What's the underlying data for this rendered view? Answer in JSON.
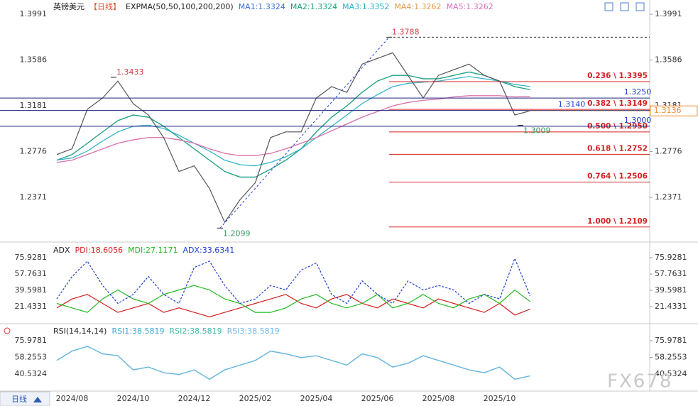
{
  "chart_data": [
    {
      "type": "line",
      "title": "英镑美元",
      "period": "【日线】",
      "indicator": "EXPMA(50,50,100,200,200)",
      "categories": [
        null,
        "2024/08",
        null,
        null,
        null,
        "2024/10",
        null,
        null,
        null,
        "2024/12",
        null,
        null,
        null,
        "2025/02",
        null,
        null,
        null,
        "2025/04",
        null,
        null,
        null,
        "2025/06",
        null,
        null,
        null,
        "2025/08",
        null,
        null,
        null,
        "2025/10",
        null,
        null
      ],
      "values": [
        1.275,
        1.28,
        1.315,
        1.325,
        1.34,
        1.32,
        1.31,
        1.29,
        1.26,
        1.265,
        1.245,
        1.215,
        1.235,
        1.25,
        1.29,
        1.295,
        1.295,
        1.325,
        1.335,
        1.33,
        1.355,
        1.36,
        1.365,
        1.345,
        1.325,
        1.345,
        1.35,
        1.355,
        1.345,
        1.34,
        1.31,
        1.3136
      ],
      "color": "#555555",
      "series": [
        {
          "name": "MA1:1.3324",
          "color": "#3b6fd4",
          "values": [
            1.27,
            1.275,
            1.285,
            1.295,
            1.305,
            1.31,
            1.308,
            1.3,
            1.29,
            1.28,
            1.27,
            1.26,
            1.255,
            1.255,
            1.262,
            1.27,
            1.28,
            1.295,
            1.308,
            1.318,
            1.33,
            1.34,
            1.345,
            1.345,
            1.342,
            1.342,
            1.345,
            1.348,
            1.345,
            1.34,
            1.335,
            1.3324
          ]
        },
        {
          "name": "MA2:1.3324",
          "color": "#1aa87a",
          "values": [
            1.27,
            1.275,
            1.285,
            1.295,
            1.305,
            1.31,
            1.308,
            1.3,
            1.29,
            1.28,
            1.27,
            1.26,
            1.255,
            1.255,
            1.262,
            1.27,
            1.28,
            1.295,
            1.308,
            1.318,
            1.33,
            1.34,
            1.345,
            1.345,
            1.342,
            1.342,
            1.345,
            1.348,
            1.345,
            1.34,
            1.335,
            1.3324
          ]
        },
        {
          "name": "MA3:1.3352",
          "color": "#2ab0c8",
          "values": [
            1.27,
            1.272,
            1.278,
            1.287,
            1.295,
            1.3,
            1.301,
            1.298,
            1.292,
            1.285,
            1.278,
            1.27,
            1.266,
            1.265,
            1.268,
            1.273,
            1.28,
            1.29,
            1.3,
            1.31,
            1.32,
            1.328,
            1.335,
            1.338,
            1.339,
            1.34,
            1.342,
            1.344,
            1.342,
            1.34,
            1.337,
            1.3352
          ]
        },
        {
          "name": "MA4:1.3262",
          "color": "#e39a4a",
          "values": [
            1.268,
            1.27,
            1.275,
            1.28,
            1.285,
            1.288,
            1.29,
            1.29,
            1.288,
            1.285,
            1.28,
            1.276,
            1.274,
            1.274,
            1.276,
            1.28,
            1.285,
            1.29,
            1.296,
            1.302,
            1.308,
            1.313,
            1.318,
            1.321,
            1.323,
            1.324,
            1.326,
            1.327,
            1.327,
            1.327,
            1.326,
            1.3262
          ]
        },
        {
          "name": "MA5:1.3262",
          "color": "#d76fb8",
          "values": [
            1.268,
            1.27,
            1.275,
            1.28,
            1.285,
            1.288,
            1.29,
            1.29,
            1.288,
            1.285,
            1.28,
            1.276,
            1.274,
            1.274,
            1.276,
            1.28,
            1.285,
            1.29,
            1.296,
            1.302,
            1.308,
            1.313,
            1.318,
            1.321,
            1.323,
            1.324,
            1.326,
            1.327,
            1.327,
            1.327,
            1.326,
            1.3262
          ]
        }
      ],
      "ylim": [
        1.1982,
        1.4117
      ],
      "yticks": [
        1.3991,
        1.3586,
        1.3181,
        1.2776,
        1.2371
      ],
      "fib_levels": [
        {
          "label": "0.236 \\ 1.3395",
          "value": 1.3395
        },
        {
          "label": "0.382 \\ 1.3149",
          "value": 1.3149
        },
        {
          "label": "0.500 \\ 1.2950",
          "value": 1.295
        },
        {
          "label": "0.618 \\ 1.2752",
          "value": 1.2752
        },
        {
          "label": "0.764 \\ 1.2506",
          "value": 1.2506
        },
        {
          "label": "1.000 \\ 1.2109",
          "value": 1.2109
        }
      ],
      "levels": [
        {
          "label": "1.3250",
          "value": 1.325
        },
        {
          "label": "1.3140",
          "value": 1.314
        },
        {
          "label": "1.3000",
          "value": 1.3
        }
      ],
      "extremes": [
        {
          "label": "1.3433",
          "value": 1.3433
        },
        {
          "label": "1.2099",
          "value": 1.2099
        },
        {
          "label": "1.3788",
          "value": 1.3788
        },
        {
          "label": "1.3009",
          "value": 1.3009
        }
      ],
      "last_price": {
        "label": "1.3136",
        "value": 1.3136
      }
    },
    {
      "type": "line",
      "title": "ADX",
      "series": [
        {
          "name": "PDI:18.6056",
          "color": "#d42020",
          "values": [
            20,
            30,
            35,
            25,
            15,
            20,
            25,
            15,
            20,
            15,
            10,
            15,
            20,
            25,
            30,
            35,
            25,
            20,
            30,
            35,
            25,
            20,
            30,
            25,
            20,
            30,
            25,
            20,
            15,
            25,
            12,
            18.6056
          ]
        },
        {
          "name": "MDI:27.1171",
          "color": "#22b822",
          "values": [
            25,
            20,
            15,
            30,
            40,
            30,
            25,
            35,
            40,
            45,
            40,
            30,
            25,
            15,
            15,
            20,
            30,
            35,
            25,
            20,
            25,
            35,
            20,
            25,
            35,
            25,
            20,
            30,
            35,
            25,
            40,
            27.1171
          ]
        },
        {
          "name": "ADX:33.6341",
          "color": "#1f3fd0",
          "dashed": true,
          "values": [
            30,
            55,
            72,
            45,
            25,
            35,
            55,
            35,
            25,
            65,
            72,
            45,
            25,
            30,
            45,
            40,
            62,
            70,
            35,
            25,
            50,
            35,
            25,
            50,
            40,
            45,
            40,
            25,
            35,
            30,
            75,
            33.6341
          ]
        }
      ],
      "ylim": [
        3.27,
        90.14
      ],
      "yticks": [
        75.9281,
        57.7631,
        39.5981,
        21.4331
      ]
    },
    {
      "type": "line",
      "title": "RSI(14,14,14)",
      "series": [
        {
          "name": "RSI1:38.5819",
          "color": "#3aa6d6",
          "values": [
            55,
            65,
            70,
            62,
            60,
            45,
            48,
            42,
            40,
            45,
            35,
            45,
            50,
            55,
            65,
            62,
            58,
            60,
            55,
            50,
            62,
            58,
            48,
            52,
            60,
            55,
            50,
            45,
            42,
            48,
            35,
            38.5819
          ]
        },
        {
          "name": "RSI2:38.5819",
          "color": "#3fb8a8",
          "values": [
            55,
            65,
            70,
            62,
            60,
            45,
            48,
            42,
            40,
            45,
            35,
            45,
            50,
            55,
            65,
            62,
            58,
            60,
            55,
            50,
            62,
            58,
            48,
            52,
            60,
            55,
            50,
            45,
            42,
            48,
            35,
            38.5819
          ]
        },
        {
          "name": "RSI3:38.5819",
          "color": "#6fb6e6",
          "values": [
            55,
            65,
            70,
            62,
            60,
            45,
            48,
            42,
            40,
            45,
            35,
            45,
            50,
            55,
            65,
            62,
            58,
            60,
            55,
            50,
            62,
            58,
            48,
            52,
            60,
            55,
            50,
            45,
            42,
            48,
            35,
            38.5819
          ]
        }
      ],
      "ylim": [
        23.19,
        91.06
      ],
      "yticks": [
        75.9781,
        58.2553,
        40.5324
      ]
    }
  ],
  "footer": {
    "tab": "日线",
    "watermark": "FX678"
  }
}
